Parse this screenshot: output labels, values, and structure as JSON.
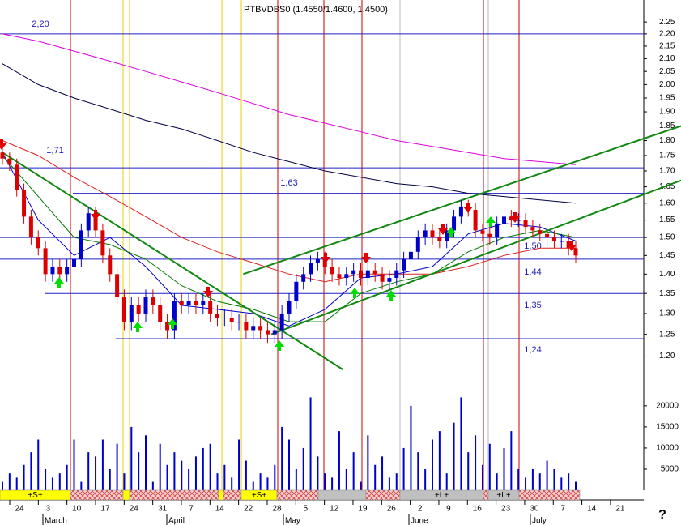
{
  "chart_data": [
    {
      "type": "candlestick",
      "title": "PTBVDBS0 (1.4550/1.4600, 1.4500)",
      "log_scale": true,
      "ylim": [
        1.163,
        2.345
      ],
      "yticks": [
        {
          "value": 1.2,
          "label": "1.20"
        },
        1.25,
        {
          "value": 1.3,
          "label": "1.30"
        },
        1.35,
        {
          "value": 1.4,
          "label": "1.40"
        },
        1.45,
        {
          "value": 1.5,
          "label": "1.50"
        },
        1.55,
        {
          "value": 1.6,
          "label": "1.60"
        },
        1.65,
        {
          "value": 1.7,
          "label": "1.70"
        },
        1.75,
        {
          "value": 1.8,
          "label": "1.80"
        },
        1.85,
        {
          "value": 1.9,
          "label": "1.90"
        },
        1.95,
        {
          "value": 2,
          "label": "2.00"
        },
        2.05,
        {
          "value": 2.1,
          "label": "2.10"
        },
        2.15,
        {
          "value": 2.2,
          "label": "2.20"
        },
        2.25
      ],
      "open": [
        1.76,
        1.74,
        1.72,
        1.64,
        1.56,
        1.5,
        1.47,
        1.4,
        1.42,
        1.4,
        1.42,
        1.44,
        1.52,
        1.57,
        1.52,
        1.45,
        1.4,
        1.34,
        1.28,
        1.32,
        1.3,
        1.34,
        1.32,
        1.28,
        1.26,
        1.33,
        1.32,
        1.33,
        1.32,
        1.33,
        1.3,
        1.29,
        1.29,
        1.28,
        1.28,
        1.26,
        1.27,
        1.26,
        1.25,
        1.26,
        1.3,
        1.33,
        1.38,
        1.4,
        1.43,
        1.44,
        1.42,
        1.4,
        1.39,
        1.4,
        1.41,
        1.39,
        1.41,
        1.4,
        1.38,
        1.39,
        1.41,
        1.44,
        1.46,
        1.5,
        1.52,
        1.5,
        1.49,
        1.52,
        1.56,
        1.59,
        1.58,
        1.52,
        1.51,
        1.5,
        1.54,
        1.56,
        1.55,
        1.55,
        1.53,
        1.52,
        1.51,
        1.5,
        1.49,
        1.49,
        1.47
      ],
      "high": [
        1.78,
        1.76,
        1.74,
        1.66,
        1.58,
        1.52,
        1.49,
        1.44,
        1.44,
        1.44,
        1.46,
        1.54,
        1.59,
        1.59,
        1.54,
        1.47,
        1.42,
        1.36,
        1.34,
        1.34,
        1.36,
        1.36,
        1.34,
        1.3,
        1.35,
        1.35,
        1.35,
        1.35,
        1.35,
        1.35,
        1.32,
        1.31,
        1.31,
        1.3,
        1.3,
        1.29,
        1.29,
        1.28,
        1.28,
        1.32,
        1.35,
        1.4,
        1.42,
        1.45,
        1.46,
        1.46,
        1.44,
        1.42,
        1.42,
        1.43,
        1.43,
        1.43,
        1.43,
        1.42,
        1.41,
        1.43,
        1.46,
        1.48,
        1.52,
        1.54,
        1.54,
        1.52,
        1.54,
        1.58,
        1.61,
        1.61,
        1.6,
        1.54,
        1.53,
        1.56,
        1.58,
        1.58,
        1.57,
        1.57,
        1.55,
        1.54,
        1.53,
        1.52,
        1.51,
        1.51,
        1.49
      ],
      "low": [
        1.72,
        1.7,
        1.62,
        1.54,
        1.48,
        1.45,
        1.38,
        1.38,
        1.38,
        1.38,
        1.4,
        1.42,
        1.5,
        1.5,
        1.43,
        1.38,
        1.32,
        1.26,
        1.26,
        1.28,
        1.28,
        1.3,
        1.26,
        1.24,
        1.24,
        1.3,
        1.3,
        1.3,
        1.3,
        1.28,
        1.27,
        1.27,
        1.26,
        1.26,
        1.24,
        1.24,
        1.24,
        1.23,
        1.23,
        1.24,
        1.28,
        1.31,
        1.36,
        1.38,
        1.41,
        1.4,
        1.38,
        1.37,
        1.37,
        1.38,
        1.37,
        1.37,
        1.38,
        1.36,
        1.36,
        1.37,
        1.39,
        1.42,
        1.44,
        1.48,
        1.48,
        1.47,
        1.47,
        1.5,
        1.54,
        1.56,
        1.5,
        1.49,
        1.48,
        1.48,
        1.52,
        1.53,
        1.53,
        1.51,
        1.5,
        1.49,
        1.48,
        1.47,
        1.47,
        1.45,
        1.43
      ],
      "close": [
        1.74,
        1.72,
        1.64,
        1.56,
        1.5,
        1.47,
        1.4,
        1.42,
        1.4,
        1.42,
        1.44,
        1.52,
        1.57,
        1.52,
        1.45,
        1.4,
        1.34,
        1.28,
        1.32,
        1.3,
        1.34,
        1.32,
        1.28,
        1.26,
        1.33,
        1.32,
        1.33,
        1.32,
        1.33,
        1.3,
        1.29,
        1.29,
        1.28,
        1.28,
        1.26,
        1.27,
        1.26,
        1.25,
        1.26,
        1.3,
        1.33,
        1.38,
        1.4,
        1.43,
        1.44,
        1.42,
        1.4,
        1.39,
        1.4,
        1.41,
        1.39,
        1.41,
        1.4,
        1.38,
        1.39,
        1.41,
        1.44,
        1.46,
        1.5,
        1.52,
        1.5,
        1.49,
        1.52,
        1.56,
        1.59,
        1.58,
        1.52,
        1.51,
        1.5,
        1.54,
        1.56,
        1.55,
        1.55,
        1.53,
        1.52,
        1.51,
        1.5,
        1.49,
        1.49,
        1.47,
        1.45
      ],
      "up_color": "#0000cc",
      "down_color": "#dd0000",
      "mas": [
        {
          "color": "#0000cc",
          "x": [
            0,
            5,
            10,
            15,
            20,
            25,
            30,
            35,
            40,
            45,
            50,
            55,
            60,
            65,
            70,
            75,
            80
          ],
          "values": [
            1.76,
            1.55,
            1.45,
            1.5,
            1.42,
            1.32,
            1.31,
            1.3,
            1.27,
            1.31,
            1.39,
            1.4,
            1.42,
            1.51,
            1.54,
            1.53,
            1.49
          ]
        },
        {
          "color": "#007700",
          "x": [
            0,
            5,
            10,
            15,
            20,
            25,
            30,
            35,
            40,
            45,
            50,
            55,
            60,
            65,
            70,
            75,
            80
          ],
          "values": [
            1.75,
            1.62,
            1.5,
            1.48,
            1.44,
            1.37,
            1.33,
            1.31,
            1.28,
            1.28,
            1.35,
            1.38,
            1.4,
            1.46,
            1.5,
            1.52,
            1.5
          ]
        },
        {
          "color": "#dd2222",
          "x": [
            0,
            5,
            10,
            15,
            20,
            25,
            30,
            35,
            40,
            45,
            50,
            55,
            60,
            65,
            70,
            75,
            80
          ],
          "values": [
            1.8,
            1.75,
            1.68,
            1.62,
            1.56,
            1.5,
            1.46,
            1.43,
            1.4,
            1.38,
            1.4,
            1.4,
            1.4,
            1.42,
            1.45,
            1.47,
            1.47
          ]
        },
        {
          "color": "#000044",
          "x": [
            0,
            5,
            10,
            15,
            20,
            25,
            30,
            35,
            40,
            45,
            50,
            55,
            60,
            65,
            70,
            75,
            80
          ],
          "values": [
            2.08,
            2.0,
            1.95,
            1.91,
            1.87,
            1.84,
            1.8,
            1.76,
            1.73,
            1.7,
            1.68,
            1.66,
            1.65,
            1.63,
            1.62,
            1.61,
            1.6
          ]
        },
        {
          "color": "#dd00dd",
          "x": [
            0,
            5,
            10,
            15,
            20,
            25,
            30,
            35,
            40,
            45,
            50,
            55,
            60,
            65,
            70,
            75,
            80
          ],
          "values": [
            2.2,
            2.17,
            2.13,
            2.09,
            2.05,
            2.01,
            1.97,
            1.93,
            1.89,
            1.86,
            1.83,
            1.8,
            1.78,
            1.76,
            1.74,
            1.73,
            1.72
          ]
        }
      ],
      "trendlines": [
        {
          "color": "#118811",
          "x": [
            0,
            47.5
          ],
          "values": [
            1.76,
            1.17
          ]
        },
        {
          "color": "#118811",
          "x": [
            33.6,
            94.7
          ],
          "values": [
            1.4,
            1.85
          ]
        },
        {
          "color": "#118811",
          "x": [
            37.5,
            94.7
          ],
          "values": [
            1.25,
            1.67
          ]
        }
      ],
      "levels": [
        {
          "value": 2.2,
          "label": "2,20"
        },
        {
          "value": 1.71,
          "label": "1,71"
        },
        {
          "value": 1.63,
          "label": "1,63"
        },
        {
          "value": 1.5,
          "label": "1,50"
        },
        {
          "value": 1.44,
          "label": "1,44"
        },
        {
          "value": 1.35,
          "label": "1,35"
        },
        {
          "value": 1.24,
          "label": "1,24"
        }
      ]
    },
    {
      "type": "bar",
      "color": "#0000cc",
      "ylim": [
        0,
        26500
      ],
      "yticks": [
        5000,
        10000,
        15000,
        20000
      ],
      "values": [
        2000,
        4000,
        3000,
        6000,
        9000,
        12000,
        5000,
        3000,
        4000,
        6000,
        12000,
        2000,
        9000,
        8000,
        12000,
        5000,
        11000,
        4000,
        15000,
        9000,
        13000,
        2000,
        11000,
        6000,
        9000,
        7000,
        5000,
        8000,
        10000,
        11000,
        4000,
        6000,
        3000,
        12000,
        7000,
        2000,
        4000,
        3000,
        6000,
        15000,
        12000,
        5000,
        10000,
        22000,
        8000,
        4000,
        3000,
        14000,
        5000,
        9000,
        2000,
        13000,
        6000,
        8000,
        3000,
        4000,
        10000,
        20000,
        9000,
        5000,
        12000,
        14000,
        4000,
        16000,
        22000,
        9000,
        13000,
        6000,
        11000,
        4000,
        10000,
        14000,
        5000,
        3000,
        5000,
        4000,
        7000,
        5000,
        3000,
        4000,
        2000
      ],
      "signals": [
        "+S+",
        "+S+",
        "+L+",
        "+L+"
      ],
      "date_labels": [
        "24",
        "3",
        "10",
        "17",
        "24",
        "31",
        "7",
        "14",
        "22",
        "28",
        "5",
        "12",
        "19",
        "26",
        "2",
        "9",
        "16",
        "23",
        "30",
        "7",
        "14",
        "21"
      ],
      "month_labels": [
        "March",
        "April",
        "May",
        "June",
        "July"
      ],
      "help": "?"
    }
  ]
}
